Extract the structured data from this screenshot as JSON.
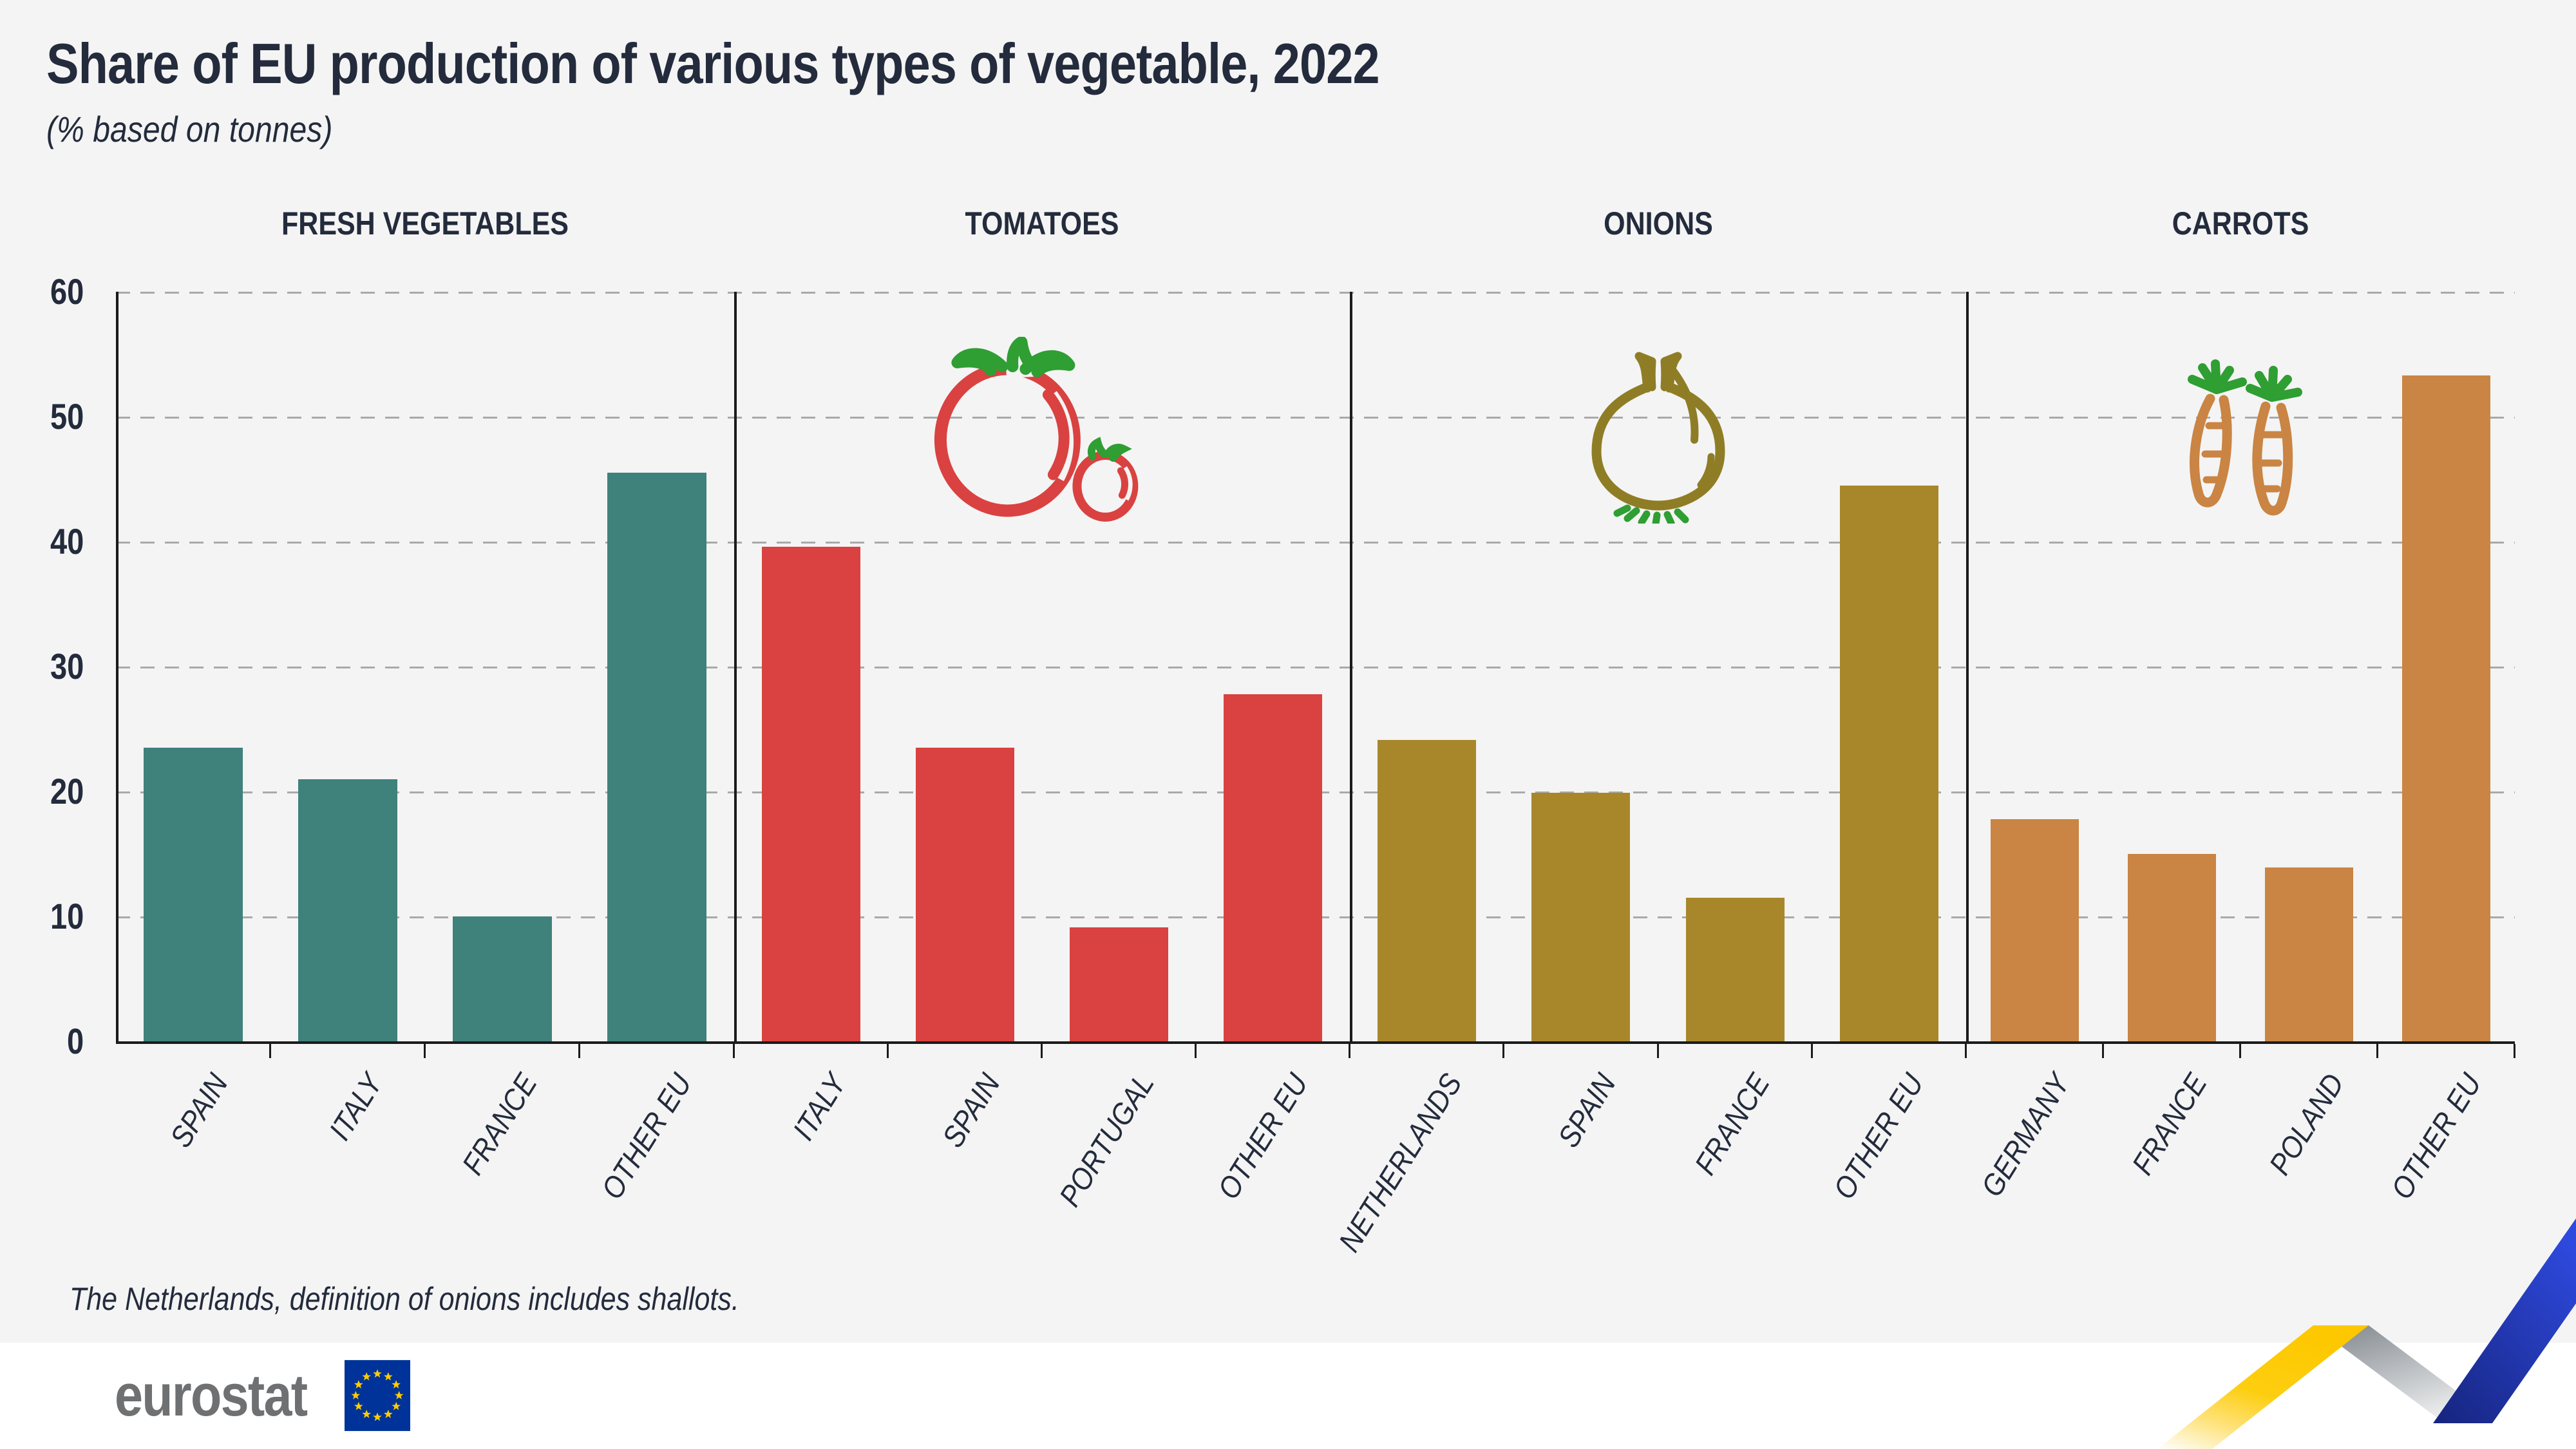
{
  "title": "Share of EU production of various types of vegetable, 2022",
  "subtitle": "(% based on tonnes)",
  "footnote": "The Netherlands, definition of onions includes shallots.",
  "logo": {
    "text": "eurostat",
    "flag_icon": "eu-flag-icon"
  },
  "y_axis": {
    "ticks": [
      0,
      10,
      20,
      30,
      40,
      50,
      60
    ]
  },
  "colors": {
    "background": "#f4f4f4",
    "text_navy": "#232b3c",
    "axis": "#1b1b1b",
    "gridline": "#a9a9a9",
    "teal": "#3f817b",
    "red": "#d94240",
    "olive": "#a8872b",
    "orange": "#ca8443",
    "leaf_green": "#2f9e33",
    "logo_gray": "#6e7072",
    "eu_blue": "#003399",
    "star_yellow": "#ffcc00",
    "ribbon_yellow": "#fdc800",
    "ribbon_gray": "#9aa0a6",
    "ribbon_blue": "#2e49dd"
  },
  "chart_data": [
    {
      "type": "bar",
      "title": "FRESH VEGETABLES",
      "icon": null,
      "color": "#3f817b",
      "categories": [
        "SPAIN",
        "ITALY",
        "FRANCE",
        "OTHER EU"
      ],
      "values": [
        23.5,
        21.0,
        10.0,
        45.5
      ],
      "xlabel": "",
      "ylabel": "%",
      "ylim": [
        0,
        60
      ],
      "grid": true,
      "legend": "none"
    },
    {
      "type": "bar",
      "title": "TOMATOES",
      "icon": "tomato-icon",
      "color": "#d94240",
      "categories": [
        "ITALY",
        "SPAIN",
        "PORTUGAL",
        "OTHER EU"
      ],
      "values": [
        39.6,
        23.5,
        9.1,
        27.8
      ],
      "xlabel": "",
      "ylabel": "%",
      "ylim": [
        0,
        60
      ],
      "grid": true,
      "legend": "none"
    },
    {
      "type": "bar",
      "title": "ONIONS",
      "icon": "onion-icon",
      "color": "#a8872b",
      "categories": [
        "NETHERLANDS",
        "SPAIN",
        "FRANCE",
        "OTHER EU"
      ],
      "values": [
        24.1,
        19.9,
        11.5,
        44.5
      ],
      "xlabel": "",
      "ylabel": "%",
      "ylim": [
        0,
        60
      ],
      "grid": true,
      "legend": "none"
    },
    {
      "type": "bar",
      "title": "CARROTS",
      "icon": "carrot-icon",
      "color": "#ca8443",
      "categories": [
        "GERMANY",
        "FRANCE",
        "POLAND",
        "OTHER EU"
      ],
      "values": [
        17.8,
        15.0,
        13.9,
        53.3
      ],
      "xlabel": "",
      "ylabel": "%",
      "ylim": [
        0,
        60
      ],
      "grid": true,
      "legend": "none"
    }
  ]
}
